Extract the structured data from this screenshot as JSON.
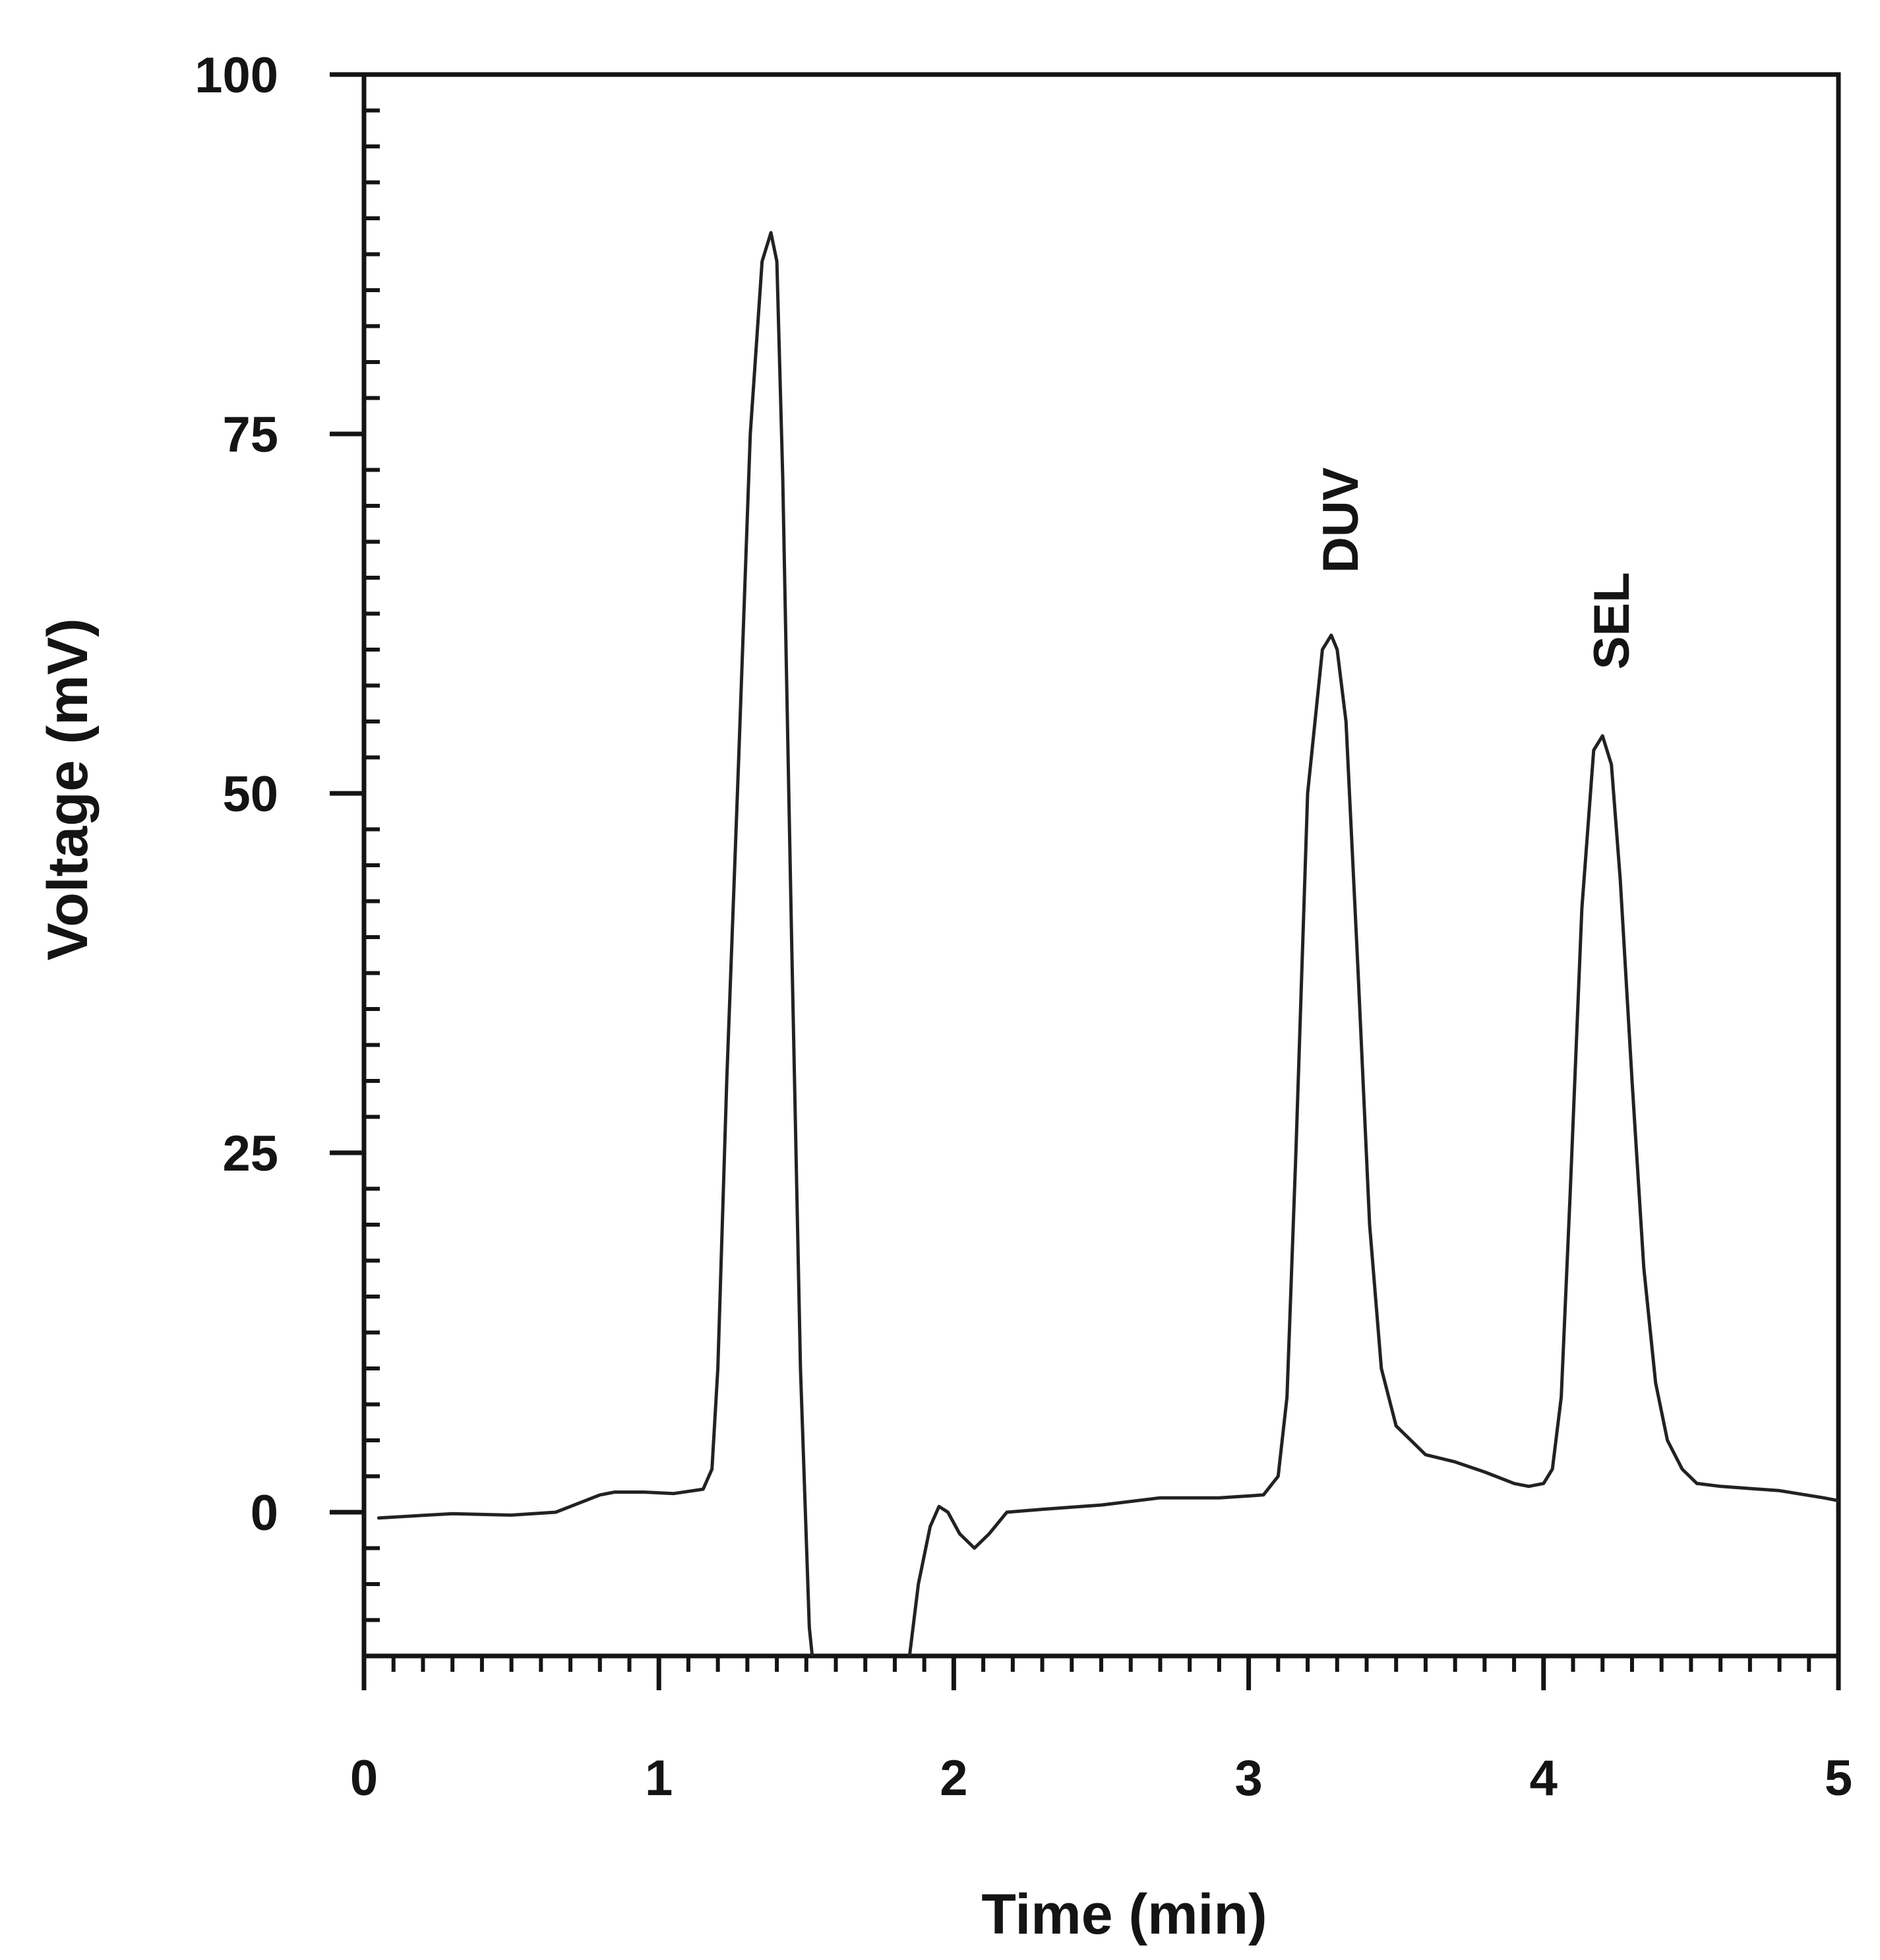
{
  "chart_data": {
    "type": "line",
    "title": "",
    "xlabel": "Time (min)",
    "ylabel": "Voltage (mV)",
    "xlim": [
      0,
      5
    ],
    "ylim": [
      -10,
      100
    ],
    "x_ticks": [
      0,
      1,
      2,
      3,
      4,
      5
    ],
    "x_tick_labels": [
      "0",
      "1",
      "2",
      "3",
      "4",
      "5"
    ],
    "y_ticks": [
      0,
      25,
      50,
      75,
      100
    ],
    "y_tick_labels": [
      "0",
      "25",
      "50",
      "75",
      "100"
    ],
    "grid": false,
    "legend": "none",
    "line_color": "#222222",
    "series": [
      {
        "x": [
          0.05,
          0.3,
          0.5,
          0.65,
          0.7,
          0.75,
          0.8,
          0.85,
          0.95,
          1.05,
          1.15,
          1.18,
          1.2,
          1.23,
          1.27,
          1.31,
          1.35,
          1.38,
          1.4,
          1.42,
          1.45,
          1.48,
          1.51,
          1.53
        ],
        "y": [
          -0.4,
          -0.1,
          -0.2,
          0,
          0.4,
          0.8,
          1.2,
          1.4,
          1.4,
          1.3,
          1.6,
          3,
          10,
          30,
          52,
          75,
          87,
          89,
          87,
          72,
          40,
          10,
          -8,
          -12
        ]
      },
      {
        "x": [
          1.85,
          1.88,
          1.92,
          1.95,
          1.98,
          2.02,
          2.07,
          2.12,
          2.18,
          2.3,
          2.5,
          2.7,
          2.9,
          3.05,
          3.1,
          3.13,
          3.16,
          3.2,
          3.25,
          3.28,
          3.3,
          3.33,
          3.37,
          3.41,
          3.45,
          3.5,
          3.55,
          3.6,
          3.7,
          3.8,
          3.9,
          3.95,
          4.0,
          4.03,
          4.06,
          4.09,
          4.13,
          4.17,
          4.2,
          4.23,
          4.26,
          4.3,
          4.34,
          4.38,
          4.42,
          4.47,
          4.52,
          4.6,
          4.8,
          4.95,
          5.0
        ],
        "y": [
          -10,
          -5,
          -1,
          0.4,
          0,
          -1.5,
          -2.5,
          -1.5,
          0,
          0.2,
          0.5,
          1,
          1,
          1.2,
          2.5,
          8,
          25,
          50,
          60,
          61,
          60,
          55,
          38,
          20,
          10,
          6,
          5,
          4,
          3.5,
          2.8,
          2,
          1.8,
          2,
          3,
          8,
          22,
          42,
          53,
          54,
          52,
          44,
          30,
          17,
          9,
          5,
          3,
          2,
          1.8,
          1.5,
          1,
          0.8
        ]
      }
    ],
    "annotations": [
      {
        "text": "DUV",
        "x": 3.28,
        "y": 69
      },
      {
        "text": "SEL",
        "x": 4.2,
        "y": 62
      }
    ]
  }
}
